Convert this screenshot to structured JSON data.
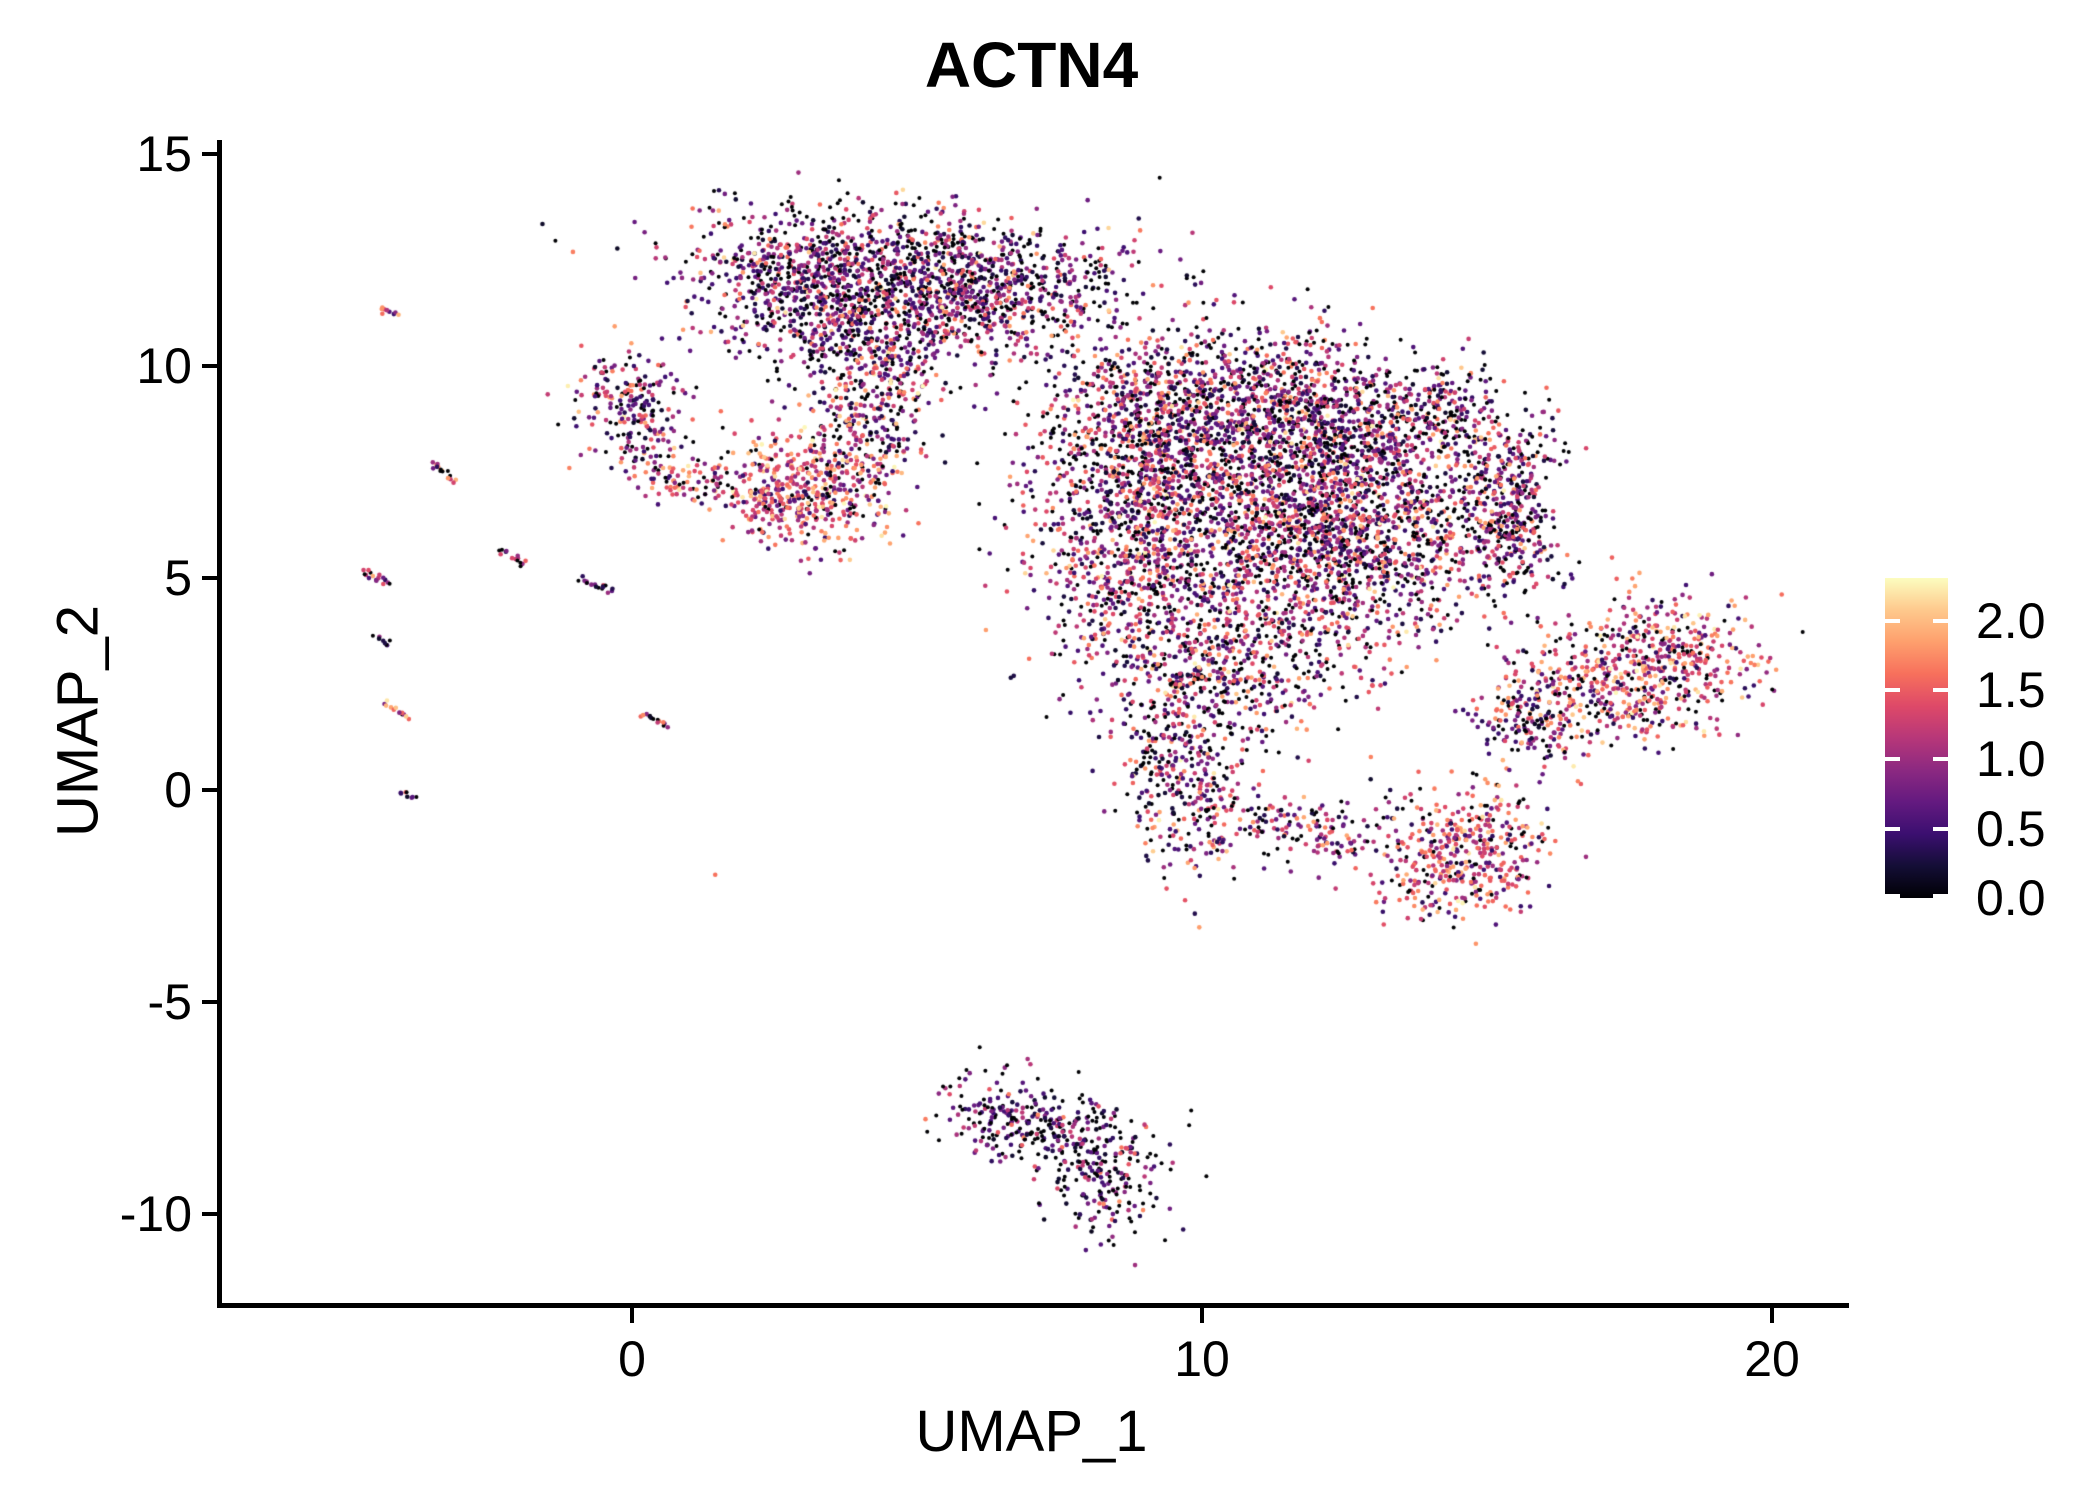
{
  "figure": {
    "background": "#ffffff"
  },
  "chart_data": {
    "type": "scatter",
    "title": "ACTN4",
    "xlabel": "UMAP_1",
    "ylabel": "UMAP_2",
    "grid": false,
    "point_style": {
      "radius_px": 2.3,
      "zero_color": "#000004"
    },
    "x_ticks": {
      "values": [
        0,
        10,
        20
      ],
      "labels": [
        "0",
        "10",
        "20"
      ]
    },
    "y_ticks": {
      "values": [
        15,
        10,
        5,
        0,
        -5,
        -10
      ],
      "labels": [
        "15",
        "10",
        "5",
        "0",
        "-5",
        "-10"
      ]
    },
    "x_range": [
      -7.2,
      21.3
    ],
    "y_range": [
      -12.1,
      15.3
    ],
    "point_count_approx": 11300,
    "colorbar": {
      "position": "right",
      "palette": "magma",
      "value_range": [
        0,
        2.31
      ],
      "tick_values": [
        2.0,
        1.5,
        1.0,
        0.5,
        0.0
      ],
      "tick_labels": [
        "2.0",
        "1.5",
        "1.0",
        "0.5",
        "0.0"
      ],
      "anchors": [
        "#000004",
        "#140e36",
        "#3b0f70",
        "#641a80",
        "#8c2981",
        "#b73779",
        "#de4968",
        "#f7705c",
        "#fe9f6d",
        "#fec98d",
        "#fcfdbf"
      ]
    },
    "expression_profiles": {
      "dark": [
        [
          0.3,
          0,
          0
        ],
        [
          0.38,
          0.15,
          0.9
        ],
        [
          0.2,
          0.9,
          1.4
        ],
        [
          0.1,
          1.4,
          1.85
        ],
        [
          0.02,
          1.85,
          2.25
        ]
      ],
      "mixed": [
        [
          0.26,
          0,
          0
        ],
        [
          0.32,
          0.15,
          0.9
        ],
        [
          0.26,
          0.9,
          1.5
        ],
        [
          0.13,
          1.5,
          1.9
        ],
        [
          0.03,
          1.9,
          2.3
        ]
      ],
      "warm": [
        [
          0.15,
          0,
          0
        ],
        [
          0.22,
          0.3,
          1.0
        ],
        [
          0.36,
          1.0,
          1.6
        ],
        [
          0.21,
          1.6,
          2.0
        ],
        [
          0.06,
          2.0,
          2.3
        ]
      ],
      "darkest": [
        [
          0.38,
          0,
          0
        ],
        [
          0.4,
          0.1,
          0.8
        ],
        [
          0.16,
          0.8,
          1.3
        ],
        [
          0.06,
          1.3,
          1.8
        ]
      ],
      "salmon": [
        [
          1.0,
          1.5,
          1.7
        ]
      ]
    },
    "clusters": [
      {
        "name": "top-main",
        "type": "gauss",
        "cx": 4.6,
        "cy": 12.4,
        "sx": 1.9,
        "sy": 0.72,
        "rot": -5,
        "n": 850,
        "profile": "dark"
      },
      {
        "name": "top-left-lobe",
        "type": "gauss",
        "cx": 3.25,
        "cy": 11.7,
        "sx": 1.05,
        "sy": 0.75,
        "rot": 0,
        "n": 480,
        "profile": "dark"
      },
      {
        "name": "top-right-lobe",
        "type": "gauss",
        "cx": 5.9,
        "cy": 11.6,
        "sx": 1.25,
        "sy": 0.65,
        "rot": 10,
        "n": 430,
        "profile": "dark"
      },
      {
        "name": "top-bottom-tail",
        "type": "gauss",
        "cx": 4.1,
        "cy": 10.4,
        "sx": 0.85,
        "sy": 0.55,
        "rot": 0,
        "n": 200,
        "profile": "dark"
      },
      {
        "name": "top-neck",
        "type": "gauss",
        "cx": 4.35,
        "cy": 8.9,
        "sx": 0.55,
        "sy": 0.85,
        "rot": 0,
        "n": 230,
        "profile": "mixed"
      },
      {
        "name": "top-right-bridge",
        "type": "gauss",
        "cx": 6.9,
        "cy": 10.7,
        "sx": 0.75,
        "sy": 0.5,
        "rot": 0,
        "n": 90,
        "profile": "dark"
      },
      {
        "name": "left-blob-upper",
        "type": "gauss",
        "cx": -0.05,
        "cy": 9.4,
        "sx": 0.55,
        "sy": 0.5,
        "rot": -20,
        "n": 140,
        "profile": "mixed"
      },
      {
        "name": "left-blob-mid",
        "type": "gauss",
        "cx": 0.25,
        "cy": 8.3,
        "sx": 0.45,
        "sy": 0.5,
        "rot": 0,
        "n": 90,
        "profile": "mixed"
      },
      {
        "name": "left-blob-arc",
        "type": "gauss",
        "cx": 0.95,
        "cy": 7.3,
        "sx": 0.6,
        "sy": 0.3,
        "rot": -15,
        "n": 90,
        "profile": "warm"
      },
      {
        "name": "orange-blob",
        "type": "gauss",
        "cx": 3.25,
        "cy": 7.25,
        "sx": 0.72,
        "sy": 0.72,
        "rot": 0,
        "n": 430,
        "profile": "warm"
      },
      {
        "name": "orange-blob-left",
        "type": "gauss",
        "cx": 2.4,
        "cy": 6.8,
        "sx": 0.4,
        "sy": 0.4,
        "rot": 0,
        "n": 90,
        "profile": "warm"
      },
      {
        "name": "main-upper",
        "type": "gauss",
        "cx": 10.6,
        "cy": 9.2,
        "sx": 1.5,
        "sy": 0.95,
        "rot": 0,
        "n": 950,
        "profile": "mixed"
      },
      {
        "name": "main-upper-left",
        "type": "gauss",
        "cx": 8.7,
        "cy": 7.9,
        "sx": 0.9,
        "sy": 1.0,
        "rot": 0,
        "n": 500,
        "profile": "mixed"
      },
      {
        "name": "main-core",
        "type": "gauss",
        "cx": 11.4,
        "cy": 6.6,
        "sx": 1.55,
        "sy": 1.35,
        "rot": 0,
        "n": 1650,
        "profile": "mixed"
      },
      {
        "name": "main-left",
        "type": "gauss",
        "cx": 8.7,
        "cy": 5.4,
        "sx": 0.85,
        "sy": 1.1,
        "rot": 0,
        "n": 430,
        "profile": "mixed"
      },
      {
        "name": "main-lower",
        "type": "gauss",
        "cx": 10.5,
        "cy": 3.3,
        "sx": 1.3,
        "sy": 1.1,
        "rot": 0,
        "n": 700,
        "profile": "mixed"
      },
      {
        "name": "main-right",
        "type": "gauss",
        "cx": 13.0,
        "cy": 5.7,
        "sx": 0.9,
        "sy": 1.2,
        "rot": 0,
        "n": 520,
        "profile": "mixed"
      },
      {
        "name": "main-upper-right",
        "type": "gauss",
        "cx": 12.5,
        "cy": 8.7,
        "sx": 0.95,
        "sy": 0.75,
        "rot": 0,
        "n": 330,
        "profile": "dark"
      },
      {
        "name": "main-lower-left-lobe",
        "type": "gauss",
        "cx": 9.6,
        "cy": 0.6,
        "sx": 0.6,
        "sy": 1.15,
        "rot": 5,
        "n": 320,
        "profile": "mixed"
      },
      {
        "name": "main-bottom-trail",
        "type": "gauss",
        "cx": 11.6,
        "cy": -0.9,
        "sx": 1.25,
        "sy": 0.4,
        "rot": -8,
        "n": 200,
        "profile": "mixed"
      },
      {
        "name": "bottom-right-lobe",
        "type": "gauss",
        "cx": 14.6,
        "cy": -1.5,
        "sx": 0.75,
        "sy": 0.85,
        "rot": -20,
        "n": 430,
        "profile": "warm"
      },
      {
        "name": "crescent-top",
        "type": "gauss",
        "cx": 14.3,
        "cy": 8.9,
        "sx": 0.6,
        "sy": 0.5,
        "rot": -30,
        "n": 170,
        "profile": "dark"
      },
      {
        "name": "crescent-mid",
        "type": "gauss",
        "cx": 15.3,
        "cy": 7.4,
        "sx": 0.5,
        "sy": 0.85,
        "rot": -10,
        "n": 250,
        "profile": "mixed"
      },
      {
        "name": "crescent-low",
        "type": "gauss",
        "cx": 15.5,
        "cy": 5.8,
        "sx": 0.45,
        "sy": 0.7,
        "rot": 10,
        "n": 200,
        "profile": "mixed"
      },
      {
        "name": "wing-right",
        "type": "gauss",
        "cx": 18.2,
        "cy": 3.1,
        "sx": 0.85,
        "sy": 0.7,
        "rot": -25,
        "n": 400,
        "profile": "warm"
      },
      {
        "name": "wing-mid",
        "type": "gauss",
        "cx": 16.9,
        "cy": 2.3,
        "sx": 0.85,
        "sy": 0.5,
        "rot": -28,
        "n": 270,
        "profile": "warm"
      },
      {
        "name": "wing-tip",
        "type": "gauss",
        "cx": 15.7,
        "cy": 1.5,
        "sx": 0.55,
        "sy": 0.35,
        "rot": -30,
        "n": 150,
        "profile": "mixed"
      },
      {
        "name": "bottom-cluster-left",
        "type": "gauss",
        "cx": 6.8,
        "cy": -7.8,
        "sx": 0.8,
        "sy": 0.5,
        "rot": -15,
        "n": 190,
        "profile": "darkest"
      },
      {
        "name": "bottom-cluster-right",
        "type": "gauss",
        "cx": 7.9,
        "cy": -8.2,
        "sx": 0.85,
        "sy": 0.5,
        "rot": -20,
        "n": 150,
        "profile": "darkest"
      },
      {
        "name": "bottom-cluster-tail",
        "type": "gauss",
        "cx": 8.3,
        "cy": -9.4,
        "sx": 0.5,
        "sy": 0.6,
        "rot": 15,
        "n": 140,
        "profile": "darkest"
      },
      {
        "name": "streak-1",
        "type": "streak",
        "cx": -4.26,
        "cy": 11.3,
        "len": 0.5,
        "angle": -35,
        "n": 10,
        "profile": "warm"
      },
      {
        "name": "streak-2",
        "type": "streak",
        "cx": -3.3,
        "cy": 7.5,
        "len": 0.6,
        "angle": -40,
        "n": 16,
        "profile": "warm"
      },
      {
        "name": "streak-3",
        "type": "streak",
        "cx": -2.1,
        "cy": 5.5,
        "len": 0.55,
        "angle": -40,
        "n": 14,
        "profile": "mixed"
      },
      {
        "name": "streak-4",
        "type": "streak",
        "cx": -4.5,
        "cy": 5.0,
        "len": 0.6,
        "angle": -35,
        "n": 16,
        "profile": "warm"
      },
      {
        "name": "streak-5",
        "type": "streak",
        "cx": -0.6,
        "cy": 4.8,
        "len": 0.75,
        "angle": -30,
        "n": 18,
        "profile": "dark"
      },
      {
        "name": "streak-6",
        "type": "streak",
        "cx": -4.4,
        "cy": 3.55,
        "len": 0.35,
        "angle": -30,
        "n": 8,
        "profile": "darkest"
      },
      {
        "name": "streak-7",
        "type": "streak",
        "cx": -4.1,
        "cy": 1.9,
        "len": 0.6,
        "angle": -35,
        "n": 14,
        "profile": "warm"
      },
      {
        "name": "streak-8",
        "type": "streak",
        "cx": 0.45,
        "cy": 1.65,
        "len": 0.65,
        "angle": -30,
        "n": 14,
        "profile": "dark"
      },
      {
        "name": "streak-9",
        "type": "streak",
        "cx": -3.9,
        "cy": -0.1,
        "len": 0.35,
        "angle": -30,
        "n": 8,
        "profile": "darkest"
      },
      {
        "name": "isolated-dot",
        "type": "dot",
        "cx": 1.46,
        "cy": -2.0,
        "n": 1,
        "profile": "salmon"
      }
    ]
  }
}
